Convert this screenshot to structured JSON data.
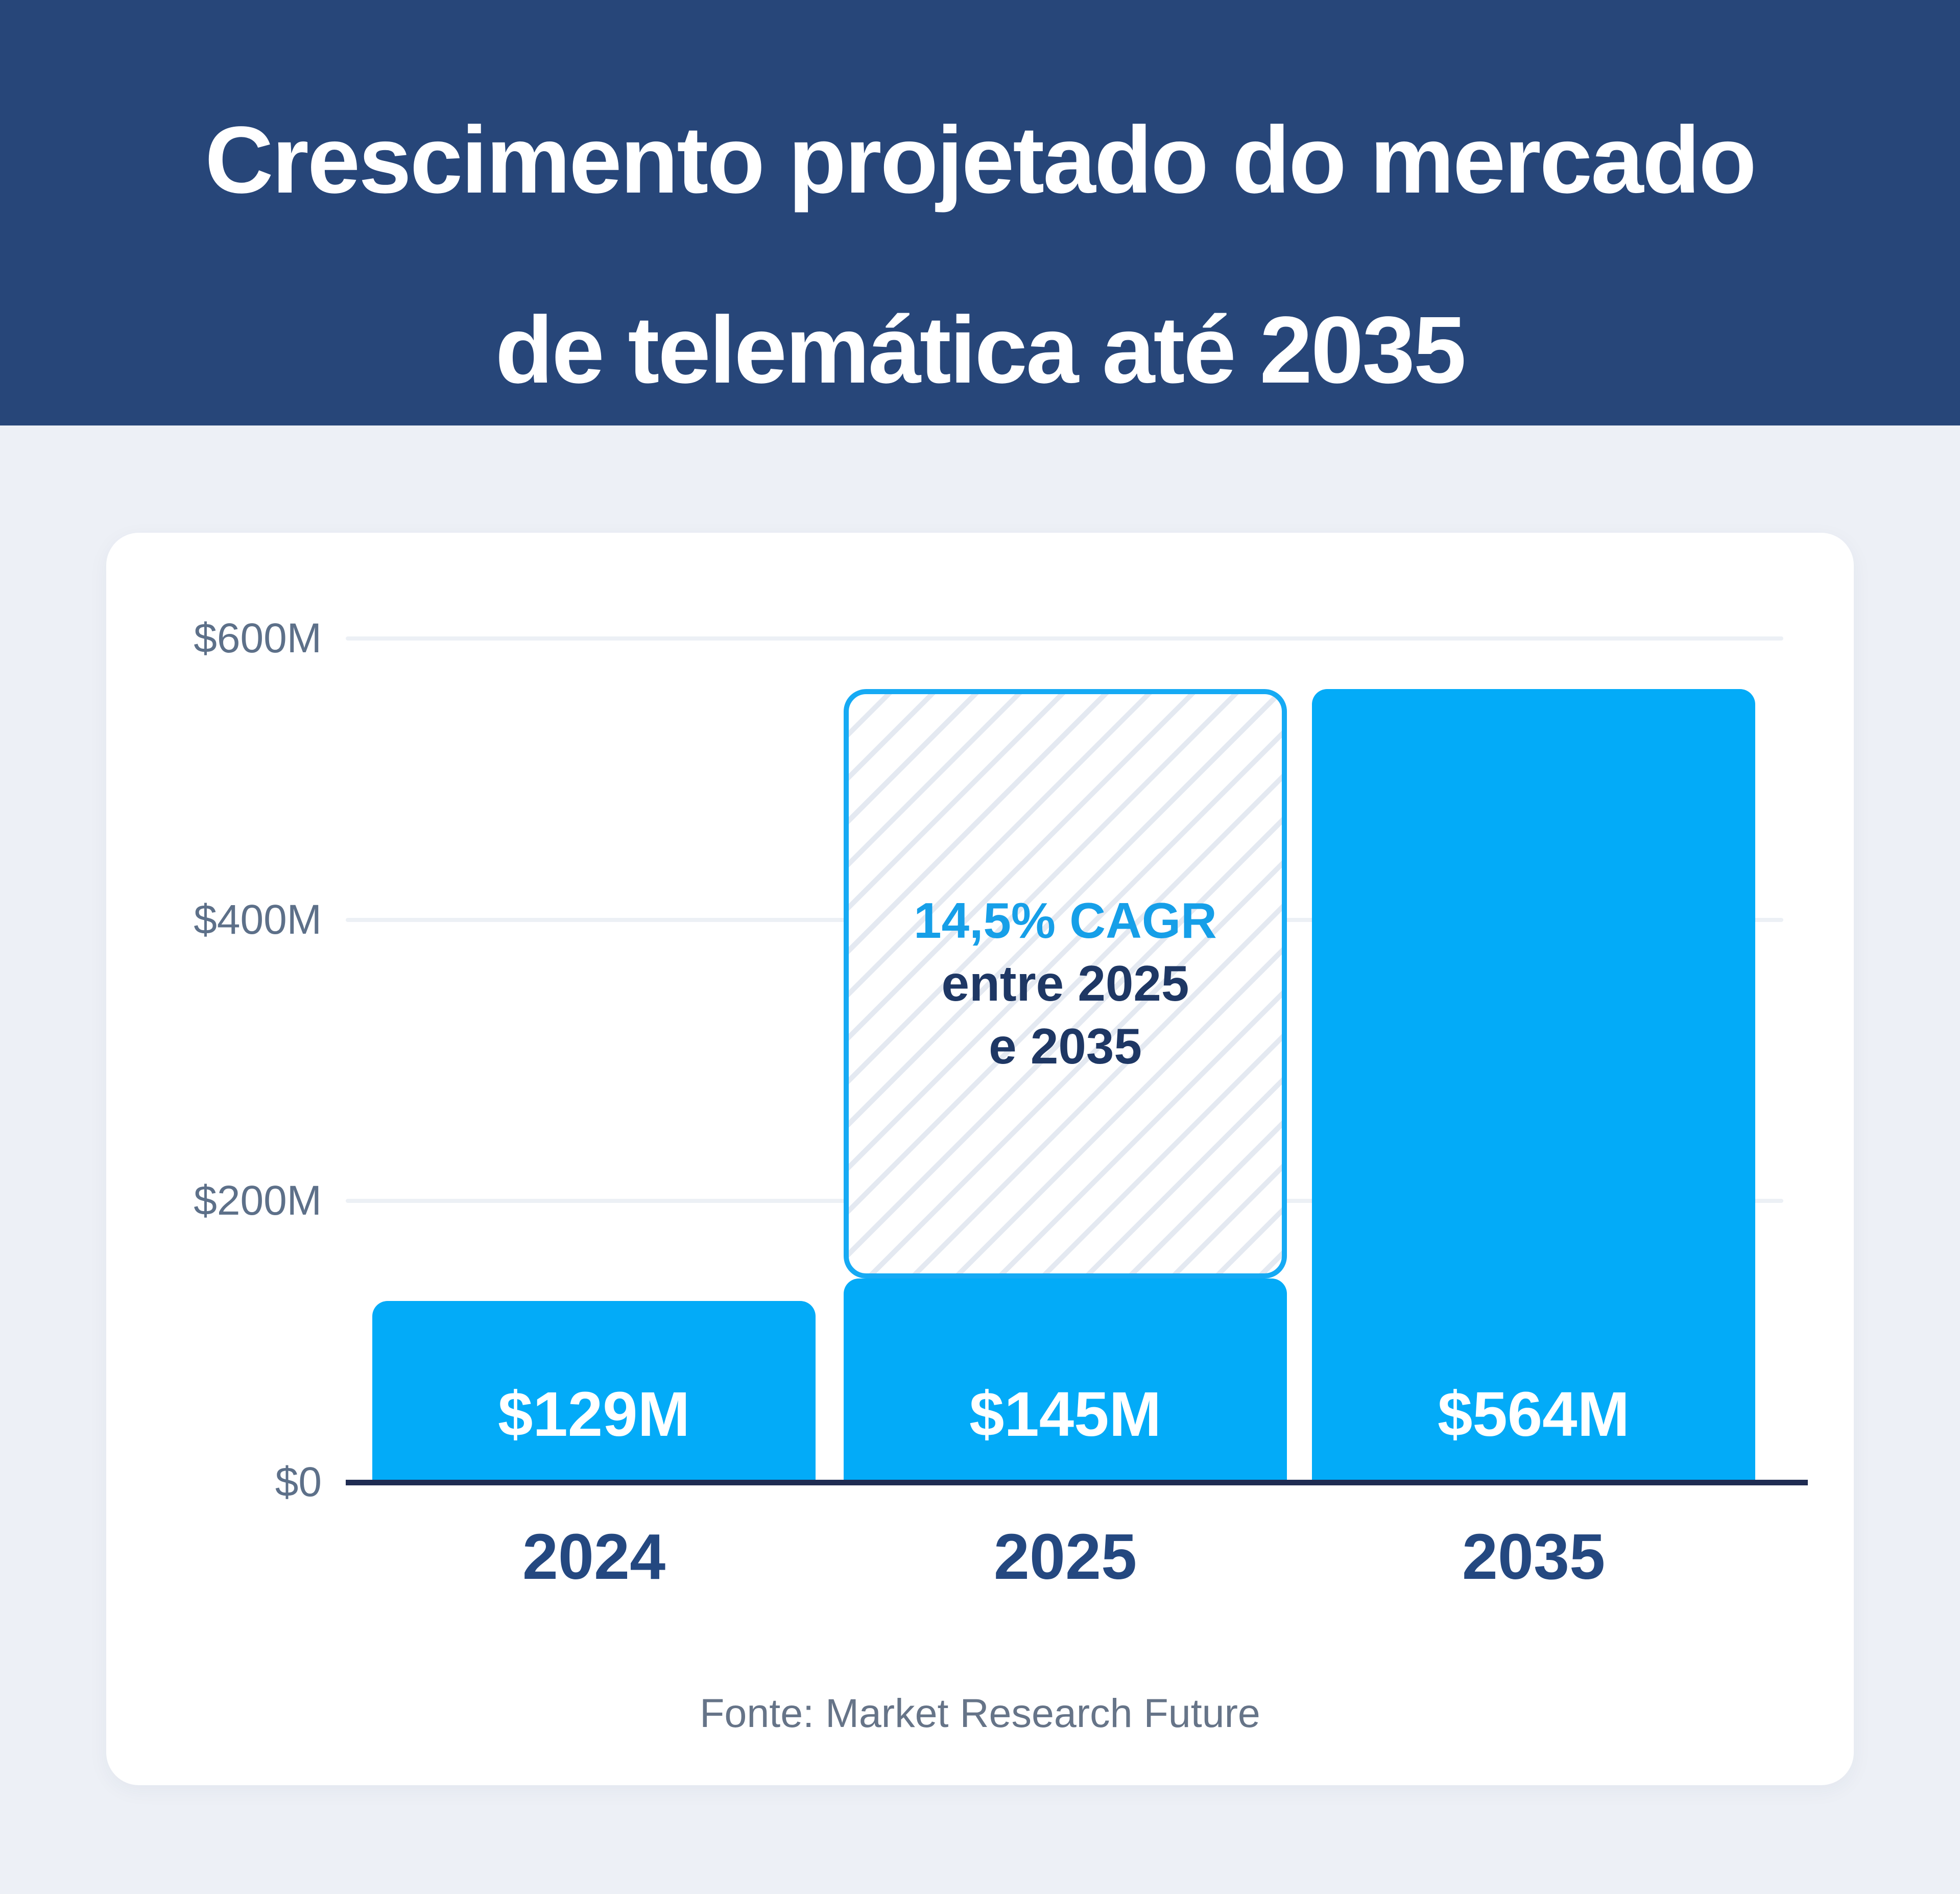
{
  "header": {
    "title_line1": "Crescimento projetado do mercado",
    "title_line2": "de telemática até 2035"
  },
  "chart_data": {
    "type": "bar",
    "title": "Crescimento projetado do mercado de telemática até 2035",
    "unit": "USD millions",
    "categories": [
      "2024",
      "2025",
      "2035"
    ],
    "values": [
      129,
      145,
      564
    ],
    "value_labels": [
      "$129M",
      "$145M",
      "$564M"
    ],
    "y_ticks": [
      "$600M",
      "$400M",
      "$200M",
      "$0"
    ],
    "y_tick_values": [
      600,
      400,
      200,
      0
    ],
    "ylim": [
      0,
      600
    ],
    "grid": "horizontal",
    "annotation": {
      "line1": "14,5% CAGR",
      "line2": "entre 2025",
      "line3": "e 2035",
      "applies_between": [
        "2025",
        "2035"
      ]
    },
    "source": "Fonte: Market Research Future",
    "colors": {
      "header_bg": "#274679",
      "page_bg": "#EDF0F6",
      "card_bg": "#FFFFFF",
      "bar": "#03ABF8",
      "annotation_border": "#16AAF4",
      "cagr_text": "#169FE8",
      "annotation_navy_text": "#1E3764",
      "year_label": "#244880",
      "axis_line": "#1F2C52",
      "gridline": "#ECF0F5",
      "y_tick_label": "#5D7089",
      "source_text": "#667488",
      "bar_value_text": "#FFFFFF",
      "title_text": "#FFFFFF"
    }
  }
}
